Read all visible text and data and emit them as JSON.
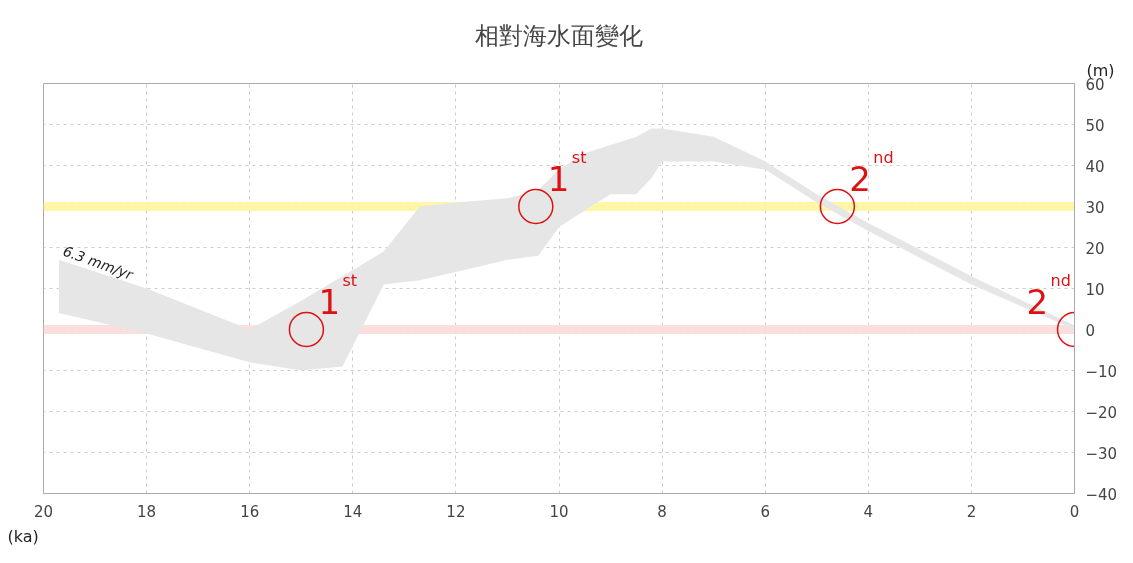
{
  "chart_data": {
    "type": "area",
    "title": "相對海水面變化",
    "xlabel": "(ka)",
    "ylabel": "(m)",
    "xlim": [
      20,
      0
    ],
    "xticks": [
      20,
      18,
      16,
      14,
      12,
      10,
      8,
      6,
      4,
      2,
      0
    ],
    "ylim": [
      -40,
      60
    ],
    "yticks": [
      -40,
      -30,
      -20,
      -10,
      0,
      10,
      20,
      30,
      40,
      50,
      60
    ],
    "grid": true,
    "series": [
      {
        "color": "#e6e6e6",
        "values": [
          null,
          null,
          null,
          null,
          null,
          null,
          null,
          null,
          null,
          null,
          null,
          null,
          null,
          null,
          null,
          null,
          null,
          null,
          null,
          null,
          null,
          null
        ],
        "x": [
          19.7,
          18,
          16,
          15,
          14.2,
          13.4,
          12.7,
          12,
          11,
          10.4,
          10,
          9.5,
          9,
          8.5,
          8.2,
          8,
          7,
          6,
          5,
          4,
          2,
          0
        ],
        "upper": [
          17,
          10,
          0,
          7,
          13,
          19,
          30,
          31,
          32,
          34,
          39,
          43,
          45,
          47,
          49,
          49,
          47,
          41,
          33,
          26,
          13,
          1
        ],
        "lower": [
          4,
          -1,
          -8,
          -10,
          -9,
          11,
          12,
          14,
          17,
          18,
          25,
          29,
          33,
          33,
          37,
          41,
          41,
          39,
          31,
          24,
          11,
          0
        ]
      }
    ],
    "ref_lines": [
      {
        "axis": "y",
        "value": 30,
        "label": null,
        "color": "#fff59d"
      },
      {
        "axis": "y",
        "value": 0,
        "label": null,
        "color": "#fbdcdc"
      }
    ],
    "annotations": [
      {
        "text": "6.3 mm/yr",
        "x": 19.7,
        "y": 17
      },
      {
        "text": "1$^{st}$",
        "x": 14.9,
        "y": 0
      },
      {
        "text": "1$^{st}$",
        "x": 10.45,
        "y": 30
      },
      {
        "text": "2$^{nd}$",
        "x": 4.6,
        "y": 30
      },
      {
        "text": "2$^{nd}$",
        "x": 0,
        "y": 0
      }
    ]
  }
}
